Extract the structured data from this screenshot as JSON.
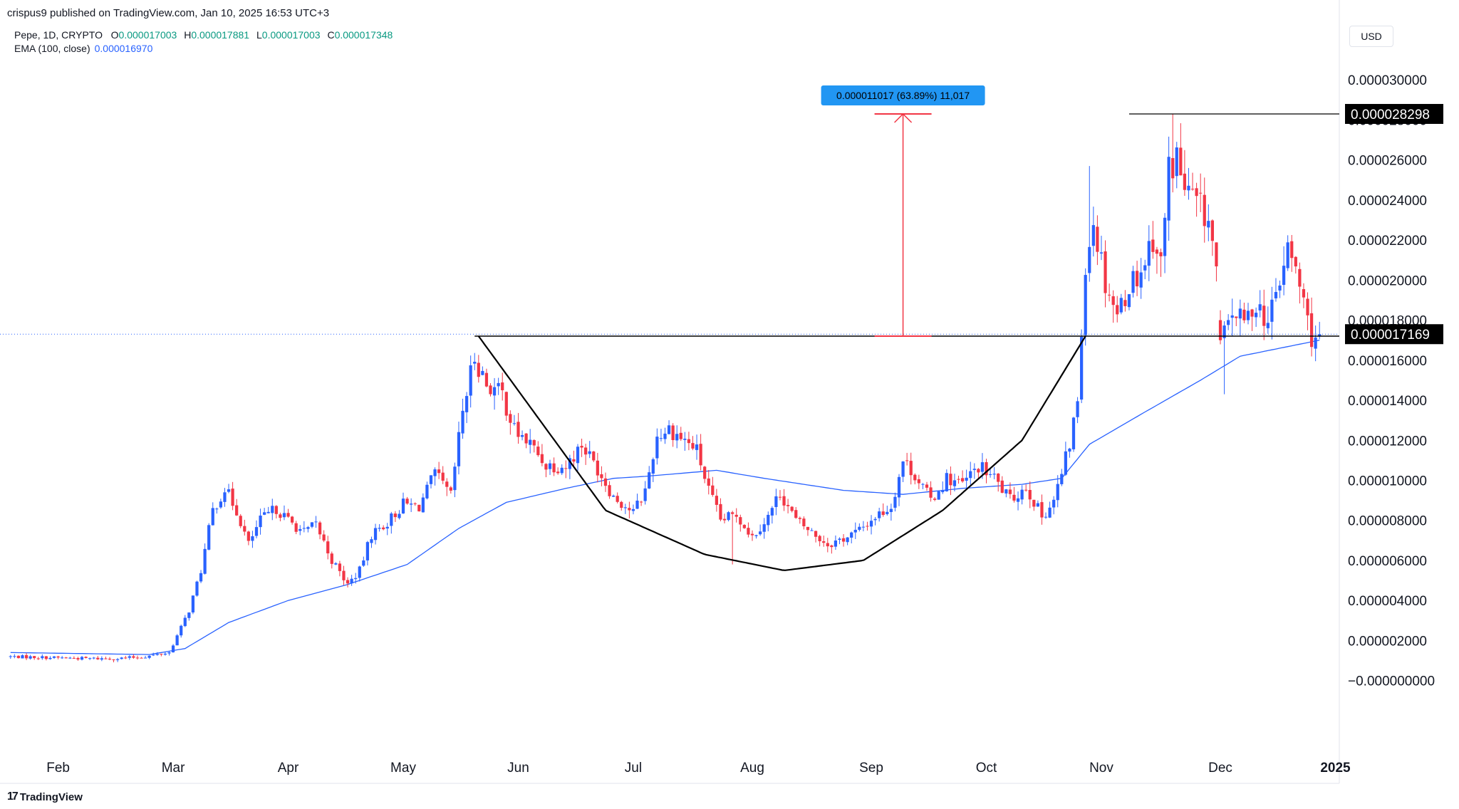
{
  "header": {
    "publisher_line": "crispus9 published on TradingView.com, Jan 10, 2025 16:53 UTC+3"
  },
  "legend": {
    "symbol": "Pepe, 1D, CRYPTO",
    "o_label": "O",
    "o_value": "0.000017003",
    "h_label": "H",
    "h_value": "0.000017881",
    "l_label": "L",
    "l_value": "0.000017003",
    "c_label": "C",
    "c_value": "0.000017348",
    "ema_label": "EMA (100, close)",
    "ema_value": "0.000016970"
  },
  "currency": "USD",
  "footer": {
    "brand": "TradingView"
  },
  "colors": {
    "up": "#2962ff",
    "down": "#f23645",
    "ema": "#2962ff",
    "measure": "#f23645",
    "measure_label_bg": "#2196f3"
  },
  "chart_data": {
    "type": "candlestick",
    "title": "",
    "y_ticks": [
      "0.000030000",
      "0.000028000",
      "0.000026000",
      "0.000024000",
      "0.000022000",
      "0.000020000",
      "0.000018000",
      "0.000016000",
      "0.000014000",
      "0.000012000",
      "0.000010000",
      "0.000008000",
      "0.000006000",
      "0.000004000",
      "0.000002000",
      "−0.000000000"
    ],
    "x_ticks": [
      "Feb",
      "Mar",
      "Apr",
      "May",
      "Jun",
      "Jul",
      "Aug",
      "Sep",
      "Oct",
      "Nov",
      "Dec",
      "2025"
    ],
    "ylim": [
      -3e-06,
      3.15e-05
    ],
    "price_labels": [
      "0.000028298",
      "0.000017169"
    ],
    "measure_label": "0.000011017 (63.89%) 11,017",
    "close_anchors": [
      [
        0,
        1.2e-06
      ],
      [
        20,
        1.1e-06
      ],
      [
        27,
        1.1e-06
      ],
      [
        34,
        1.2e-06
      ],
      [
        40,
        1.4e-06
      ],
      [
        45,
        3.5e-06
      ],
      [
        48,
        5.5e-06
      ],
      [
        51,
        8.5e-06
      ],
      [
        54,
        9.6e-06
      ],
      [
        57,
        8.5e-06
      ],
      [
        60,
        6.8e-06
      ],
      [
        63,
        8e-06
      ],
      [
        67,
        8.6e-06
      ],
      [
        70,
        8e-06
      ],
      [
        74,
        7.4e-06
      ],
      [
        77,
        7.8e-06
      ],
      [
        81,
        6e-06
      ],
      [
        85,
        4.8e-06
      ],
      [
        88,
        5.5e-06
      ],
      [
        91,
        7.3e-06
      ],
      [
        95,
        7.9e-06
      ],
      [
        99,
        8.8e-06
      ],
      [
        103,
        8.7e-06
      ],
      [
        107,
        1.03e-05
      ],
      [
        111,
        9.2e-06
      ],
      [
        114,
        1.35e-05
      ],
      [
        117,
        1.62e-05
      ],
      [
        120,
        1.48e-05
      ],
      [
        124,
        1.43e-05
      ],
      [
        127,
        1.25e-05
      ],
      [
        131,
        1.18e-05
      ],
      [
        135,
        1.08e-05
      ],
      [
        140,
        1.07e-05
      ],
      [
        144,
        1.18e-05
      ],
      [
        148,
        1.06e-05
      ],
      [
        152,
        9.2e-06
      ],
      [
        157,
        8.4e-06
      ],
      [
        160,
        9.5e-06
      ],
      [
        163,
        1.22e-05
      ],
      [
        166,
        1.26e-05
      ],
      [
        170,
        1.2e-05
      ],
      [
        173,
        1.15e-05
      ],
      [
        176,
        9.5e-06
      ],
      [
        179,
        8e-06
      ],
      [
        183,
        8.3e-06
      ],
      [
        187,
        7.2e-06
      ],
      [
        191,
        8.2e-06
      ],
      [
        194,
        9.4e-06
      ],
      [
        198,
        8e-06
      ],
      [
        202,
        7.4e-06
      ],
      [
        206,
        6.8e-06
      ],
      [
        210,
        7.1e-06
      ],
      [
        214,
        7.5e-06
      ],
      [
        218,
        8.2e-06
      ],
      [
        222,
        8.7e-06
      ],
      [
        225,
        1.1e-05
      ],
      [
        228,
        1.03e-05
      ],
      [
        232,
        9e-06
      ],
      [
        236,
        1.01e-05
      ],
      [
        240,
        9.8e-06
      ],
      [
        244,
        1.07e-05
      ],
      [
        248,
        1.01e-05
      ],
      [
        252,
        9e-06
      ],
      [
        256,
        9.7e-06
      ],
      [
        260,
        8.2e-06
      ],
      [
        263,
        9e-06
      ],
      [
        265,
        1.03e-05
      ],
      [
        267,
        1.18e-05
      ],
      [
        269,
        1.4e-05
      ],
      [
        271,
        2.1e-05
      ],
      [
        273,
        2.3e-05
      ],
      [
        276,
        2e-05
      ],
      [
        279,
        1.83e-05
      ],
      [
        282,
        1.98e-05
      ],
      [
        285,
        2.05e-05
      ],
      [
        288,
        2.22e-05
      ],
      [
        290,
        2.08e-05
      ],
      [
        292,
        2.55e-05
      ],
      [
        294,
        2.62e-05
      ],
      [
        296,
        2.45e-05
      ],
      [
        299,
        2.38e-05
      ],
      [
        302,
        2.3e-05
      ],
      [
        304,
        2.05e-05
      ],
      [
        306,
        1.72e-05
      ],
      [
        308,
        1.85e-05
      ],
      [
        311,
        1.78e-05
      ],
      [
        314,
        1.9e-05
      ],
      [
        317,
        1.78e-05
      ],
      [
        320,
        2e-05
      ],
      [
        322,
        2.15e-05
      ],
      [
        324,
        2.05e-05
      ],
      [
        326,
        1.88e-05
      ],
      [
        328,
        1.72e-05
      ],
      [
        330,
        1.73e-05
      ]
    ],
    "ema_anchors": [
      [
        0,
        1.4e-06
      ],
      [
        35,
        1.3e-06
      ],
      [
        44,
        1.6e-06
      ],
      [
        55,
        2.9e-06
      ],
      [
        70,
        4e-06
      ],
      [
        85,
        4.8e-06
      ],
      [
        100,
        5.8e-06
      ],
      [
        113,
        7.6e-06
      ],
      [
        125,
        8.9e-06
      ],
      [
        140,
        9.6e-06
      ],
      [
        152,
        1.01e-05
      ],
      [
        160,
        1.02e-05
      ],
      [
        178,
        1.05e-05
      ],
      [
        190,
        1.01e-05
      ],
      [
        210,
        9.5e-06
      ],
      [
        225,
        9.3e-06
      ],
      [
        240,
        9.6e-06
      ],
      [
        255,
        9.8e-06
      ],
      [
        265,
        1.01e-05
      ],
      [
        272,
        1.18e-05
      ],
      [
        285,
        1.33e-05
      ],
      [
        300,
        1.5e-05
      ],
      [
        310,
        1.62e-05
      ],
      [
        320,
        1.66e-05
      ],
      [
        330,
        1.7e-05
      ]
    ],
    "cup_anchors": [
      [
        118,
        1.72e-05
      ],
      [
        150,
        8.5e-06
      ],
      [
        175,
        6.3e-06
      ],
      [
        195,
        5.5e-06
      ],
      [
        215,
        6e-06
      ],
      [
        235,
        8.5e-06
      ],
      [
        255,
        1.2e-05
      ],
      [
        271,
        1.72e-05
      ]
    ],
    "resistance": 1.72e-05,
    "peak": 2.83e-05,
    "measure": {
      "x_bar": 225,
      "from": 1.72e-05,
      "to": 2.83e-05
    },
    "last_close": 1.73e-05,
    "n_bars": 331
  }
}
